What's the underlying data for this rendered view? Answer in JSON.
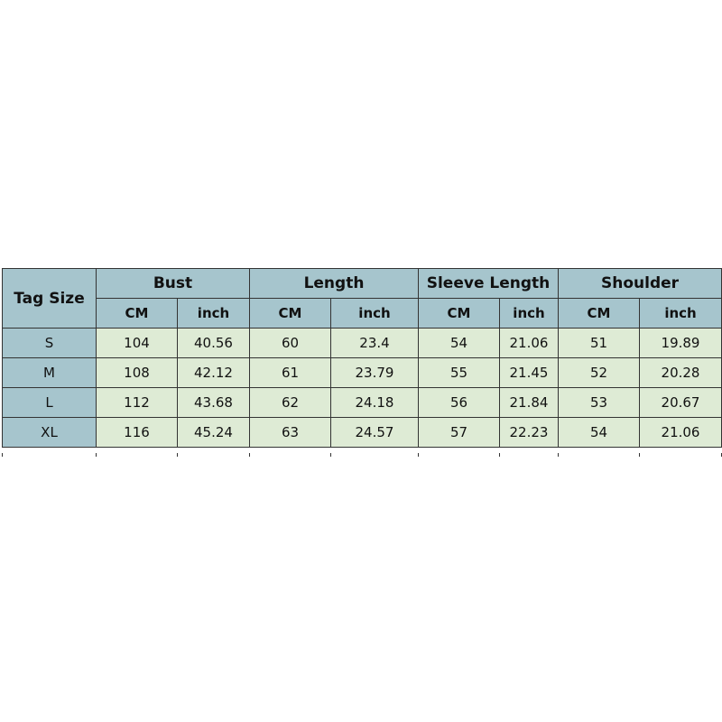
{
  "table": {
    "corner_header": "Tag Size",
    "groups": [
      "Bust",
      "Length",
      "Sleeve Length",
      "Shoulder"
    ],
    "units": [
      "CM",
      "inch"
    ],
    "rows": [
      {
        "size": "S",
        "values": [
          "104",
          "40.56",
          "60",
          "23.4",
          "54",
          "21.06",
          "51",
          "19.89"
        ]
      },
      {
        "size": "M",
        "values": [
          "108",
          "42.12",
          "61",
          "23.79",
          "55",
          "21.45",
          "52",
          "20.28"
        ]
      },
      {
        "size": "L",
        "values": [
          "112",
          "43.68",
          "62",
          "24.18",
          "56",
          "21.84",
          "53",
          "20.67"
        ]
      },
      {
        "size": "XL",
        "values": [
          "116",
          "45.24",
          "63",
          "24.57",
          "57",
          "22.23",
          "54",
          "21.06"
        ]
      }
    ]
  },
  "colors": {
    "header_bg": "#a6c5cd",
    "cell_bg": "#deebd5",
    "border": "#333333"
  }
}
